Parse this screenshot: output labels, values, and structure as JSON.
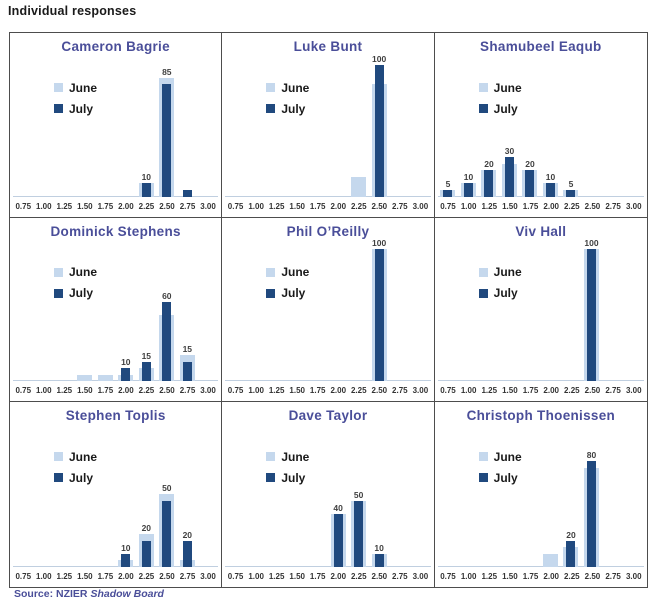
{
  "page": {
    "title": "Individual responses",
    "source_prefix": "Source: NZIER ",
    "source_italic": "Shadow Board"
  },
  "colors": {
    "june": "#c5d8ed",
    "july": "#20497e",
    "panel_title": "#4a4e99",
    "source_text": "#4a4e99",
    "grid_border": "#4d4d4d",
    "axis_line": "#c0cfe0",
    "bar_label": "#3f3f3f"
  },
  "legend": {
    "june_label": "June",
    "july_label": "July"
  },
  "chart_data": [
    {
      "type": "bar",
      "title": "Cameron Bagrie",
      "categories": [
        "0.75",
        "1.00",
        "1.25",
        "1.50",
        "1.75",
        "2.00",
        "2.25",
        "2.50",
        "2.75",
        "3.00"
      ],
      "series": [
        {
          "name": "June",
          "values": [
            0,
            0,
            0,
            0,
            0,
            0,
            10,
            90,
            0,
            0
          ]
        },
        {
          "name": "July",
          "values": [
            0,
            0,
            0,
            0,
            0,
            0,
            10,
            85,
            5,
            0
          ]
        }
      ],
      "bar_labels": [
        "",
        "",
        "",
        "",
        "",
        "",
        "10",
        "85",
        "",
        ""
      ],
      "ylim": [
        0,
        100
      ],
      "legend_position": "top-left"
    },
    {
      "type": "bar",
      "title": "Luke Bunt",
      "categories": [
        "0.75",
        "1.00",
        "1.25",
        "1.50",
        "1.75",
        "2.00",
        "2.25",
        "2.50",
        "2.75",
        "3.00"
      ],
      "series": [
        {
          "name": "June",
          "values": [
            0,
            0,
            0,
            0,
            0,
            0,
            15,
            85,
            0,
            0
          ]
        },
        {
          "name": "July",
          "values": [
            0,
            0,
            0,
            0,
            0,
            0,
            0,
            100,
            0,
            0
          ]
        }
      ],
      "bar_labels": [
        "",
        "",
        "",
        "",
        "",
        "",
        "",
        "100",
        "",
        ""
      ],
      "ylim": [
        0,
        100
      ],
      "legend_position": "top-left"
    },
    {
      "type": "bar",
      "title": "Shamubeel Eaqub",
      "categories": [
        "0.75",
        "1.00",
        "1.25",
        "1.50",
        "1.75",
        "2.00",
        "2.25",
        "2.50",
        "2.75",
        "3.00"
      ],
      "series": [
        {
          "name": "June",
          "values": [
            5,
            10,
            20,
            25,
            20,
            10,
            5,
            0,
            0,
            0
          ]
        },
        {
          "name": "July",
          "values": [
            5,
            10,
            20,
            30,
            20,
            10,
            5,
            0,
            0,
            0
          ]
        }
      ],
      "bar_labels": [
        "5",
        "10",
        "20",
        "30",
        "20",
        "10",
        "5",
        "",
        "",
        ""
      ],
      "ylim": [
        0,
        100
      ],
      "legend_position": "top-left"
    },
    {
      "type": "bar",
      "title": "Dominick Stephens",
      "categories": [
        "0.75",
        "1.00",
        "1.25",
        "1.50",
        "1.75",
        "2.00",
        "2.25",
        "2.50",
        "2.75",
        "3.00"
      ],
      "series": [
        {
          "name": "June",
          "values": [
            0,
            0,
            0,
            5,
            5,
            5,
            10,
            50,
            20,
            0
          ]
        },
        {
          "name": "July",
          "values": [
            0,
            0,
            0,
            0,
            0,
            10,
            15,
            60,
            15,
            0
          ]
        }
      ],
      "bar_labels": [
        "",
        "",
        "",
        "",
        "",
        "10",
        "15",
        "60",
        "15",
        ""
      ],
      "ylim": [
        0,
        100
      ],
      "legend_position": "top-left"
    },
    {
      "type": "bar",
      "title": "Phil O’Reilly",
      "categories": [
        "0.75",
        "1.00",
        "1.25",
        "1.50",
        "1.75",
        "2.00",
        "2.25",
        "2.50",
        "2.75",
        "3.00"
      ],
      "series": [
        {
          "name": "June",
          "values": [
            0,
            0,
            0,
            0,
            0,
            0,
            0,
            100,
            0,
            0
          ]
        },
        {
          "name": "July",
          "values": [
            0,
            0,
            0,
            0,
            0,
            0,
            0,
            100,
            0,
            0
          ]
        }
      ],
      "bar_labels": [
        "",
        "",
        "",
        "",
        "",
        "",
        "",
        "100",
        "",
        ""
      ],
      "ylim": [
        0,
        100
      ],
      "legend_position": "top-left"
    },
    {
      "type": "bar",
      "title": "Viv Hall",
      "categories": [
        "0.75",
        "1.00",
        "1.25",
        "1.50",
        "1.75",
        "2.00",
        "2.25",
        "2.50",
        "2.75",
        "3.00"
      ],
      "series": [
        {
          "name": "June",
          "values": [
            0,
            0,
            0,
            0,
            0,
            0,
            0,
            100,
            0,
            0
          ]
        },
        {
          "name": "July",
          "values": [
            0,
            0,
            0,
            0,
            0,
            0,
            0,
            100,
            0,
            0
          ]
        }
      ],
      "bar_labels": [
        "",
        "",
        "",
        "",
        "",
        "",
        "",
        "100",
        "",
        ""
      ],
      "ylim": [
        0,
        100
      ],
      "legend_position": "top-left"
    },
    {
      "type": "bar",
      "title": "Stephen Toplis",
      "categories": [
        "0.75",
        "1.00",
        "1.25",
        "1.50",
        "1.75",
        "2.00",
        "2.25",
        "2.50",
        "2.75",
        "3.00"
      ],
      "series": [
        {
          "name": "June",
          "values": [
            0,
            0,
            0,
            0,
            0,
            5,
            25,
            55,
            5,
            0
          ]
        },
        {
          "name": "July",
          "values": [
            0,
            0,
            0,
            0,
            0,
            10,
            20,
            50,
            20,
            0
          ]
        }
      ],
      "bar_labels": [
        "",
        "",
        "",
        "",
        "",
        "10",
        "20",
        "50",
        "20",
        ""
      ],
      "ylim": [
        0,
        100
      ],
      "legend_position": "top-left"
    },
    {
      "type": "bar",
      "title": "Dave Taylor",
      "categories": [
        "0.75",
        "1.00",
        "1.25",
        "1.50",
        "1.75",
        "2.00",
        "2.25",
        "2.50",
        "2.75",
        "3.00"
      ],
      "series": [
        {
          "name": "June",
          "values": [
            0,
            0,
            0,
            0,
            0,
            40,
            50,
            10,
            0,
            0
          ]
        },
        {
          "name": "July",
          "values": [
            0,
            0,
            0,
            0,
            0,
            40,
            50,
            10,
            0,
            0
          ]
        }
      ],
      "bar_labels": [
        "",
        "",
        "",
        "",
        "",
        "40",
        "50",
        "10",
        "",
        ""
      ],
      "ylim": [
        0,
        100
      ],
      "legend_position": "top-left"
    },
    {
      "type": "bar",
      "title": "Christoph Thoenissen",
      "categories": [
        "0.75",
        "1.00",
        "1.25",
        "1.50",
        "1.75",
        "2.00",
        "2.25",
        "2.50",
        "2.75",
        "3.00"
      ],
      "series": [
        {
          "name": "June",
          "values": [
            0,
            0,
            0,
            0,
            0,
            10,
            15,
            75,
            0,
            0
          ]
        },
        {
          "name": "July",
          "values": [
            0,
            0,
            0,
            0,
            0,
            0,
            20,
            80,
            0,
            0
          ]
        }
      ],
      "bar_labels": [
        "",
        "",
        "",
        "",
        "",
        "",
        "20",
        "80",
        "",
        ""
      ],
      "ylim": [
        0,
        100
      ],
      "legend_position": "top-left"
    }
  ]
}
